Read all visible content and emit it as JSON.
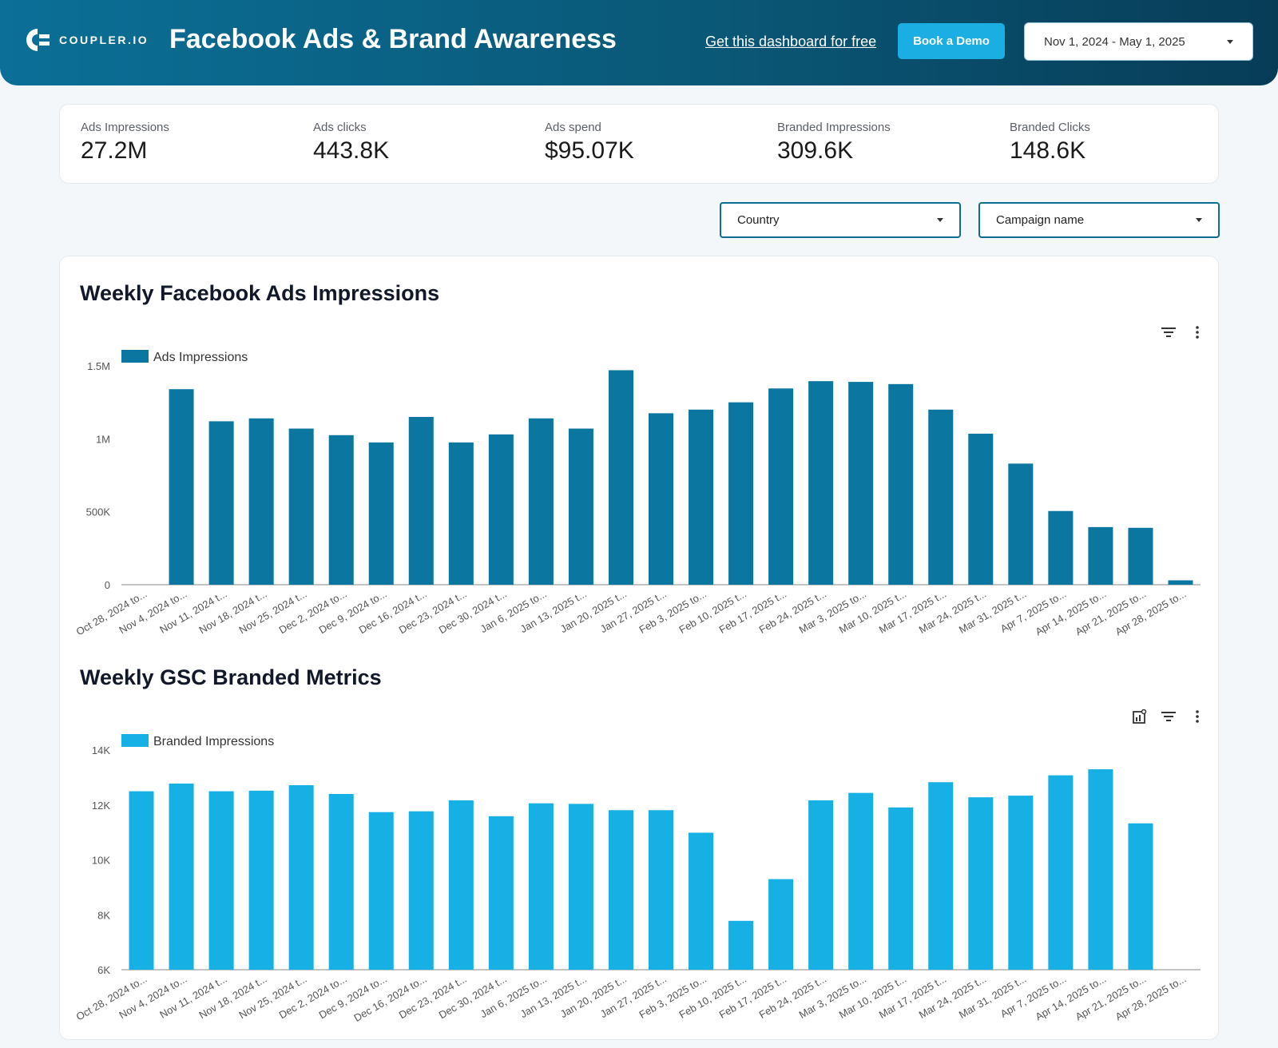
{
  "header": {
    "brand": "COUPLER.IO",
    "title": "Facebook Ads & Brand Awareness",
    "free_link": "Get this dashboard for free",
    "demo_button": "Book a Demo",
    "date_range": "Nov 1, 2024 - May 1, 2025"
  },
  "kpis": [
    {
      "label": "Ads Impressions",
      "value": "27.2M"
    },
    {
      "label": "Ads clicks",
      "value": "443.8K"
    },
    {
      "label": "Ads spend",
      "value": "$95.07K"
    },
    {
      "label": "Branded Impressions",
      "value": "309.6K"
    },
    {
      "label": "Branded Clicks",
      "value": "148.6K"
    }
  ],
  "filters": {
    "country": "Country",
    "campaign": "Campaign name"
  },
  "colors": {
    "ads": "#0b76a0",
    "branded": "#17b0e4"
  },
  "chart_data": [
    {
      "type": "bar",
      "title": "Weekly Facebook Ads Impressions",
      "categories": [
        "Oct 28, 2024 to...",
        "Nov 4, 2024 to...",
        "Nov 11, 2024 t...",
        "Nov 18, 2024 t...",
        "Nov 25, 2024 t...",
        "Dec 2, 2024 to...",
        "Dec 9, 2024 to...",
        "Dec 16, 2024 t...",
        "Dec 23, 2024 t...",
        "Dec 30, 2024 t...",
        "Jan 6, 2025 to...",
        "Jan 13, 2025 t...",
        "Jan 20, 2025 t...",
        "Jan 27, 2025 t...",
        "Feb 3, 2025 to...",
        "Feb 10, 2025 t...",
        "Feb 17, 2025 t...",
        "Feb 24, 2025 t...",
        "Mar 3, 2025 to...",
        "Mar 10, 2025 t...",
        "Mar 17, 2025 t...",
        "Mar 24, 2025 t...",
        "Mar 31, 2025 t...",
        "Apr 7, 2025 to...",
        "Apr 14, 2025 to...",
        "Apr 21, 2025 to...",
        "Apr 28, 2025 to..."
      ],
      "series": [
        {
          "name": "Ads Impressions",
          "values": [
            0,
            1340000,
            1120000,
            1140000,
            1070000,
            1025000,
            975000,
            1150000,
            975000,
            1030000,
            1140000,
            1070000,
            1470000,
            1175000,
            1200000,
            1250000,
            1345000,
            1395000,
            1390000,
            1375000,
            1200000,
            1035000,
            830000,
            505000,
            395000,
            390000,
            30000
          ]
        }
      ],
      "yticks": [
        "0",
        "500K",
        "1M",
        "1.5M"
      ],
      "ylim": [
        0,
        1500000
      ],
      "xlabel": "",
      "ylabel": ""
    },
    {
      "type": "bar",
      "title": "Weekly GSC Branded Metrics",
      "categories": [
        "Oct 28, 2024 to...",
        "Nov 4, 2024 to...",
        "Nov 11, 2024 t...",
        "Nov 18, 2024 t...",
        "Nov 25, 2024 t...",
        "Dec 2, 2024 to...",
        "Dec 9, 2024 to...",
        "Dec 16, 2024 to...",
        "Dec 23, 2024 t...",
        "Dec 30, 2024 t...",
        "Jan 6, 2025 to...",
        "Jan 13, 2025 t...",
        "Jan 20, 2025 t...",
        "Jan 27, 2025 t...",
        "Feb 3, 2025 to...",
        "Feb 10, 2025 t...",
        "Feb 17, 2025 t...",
        "Feb 24, 2025 t...",
        "Mar 3, 2025 to...",
        "Mar 10, 2025 t...",
        "Mar 17, 2025 t...",
        "Mar 24, 2025 t...",
        "Mar 31, 2025 t...",
        "Apr 7, 2025 to...",
        "Apr 14, 2025 to...",
        "Apr 21, 2025 to...",
        "Apr 28, 2025 to..."
      ],
      "series": [
        {
          "name": "Branded Impressions",
          "values": [
            12500,
            12780,
            12500,
            12520,
            12720,
            12400,
            11740,
            11770,
            12170,
            11590,
            12060,
            12040,
            11810,
            11810,
            10990,
            7780,
            9300,
            12170,
            12440,
            11910,
            12830,
            12280,
            12340,
            13080,
            13300,
            11330,
            null
          ]
        }
      ],
      "yticks": [
        "6K",
        "8K",
        "10K",
        "12K",
        "14K"
      ],
      "ylim": [
        6000,
        14000
      ],
      "xlabel": "",
      "ylabel": ""
    }
  ]
}
